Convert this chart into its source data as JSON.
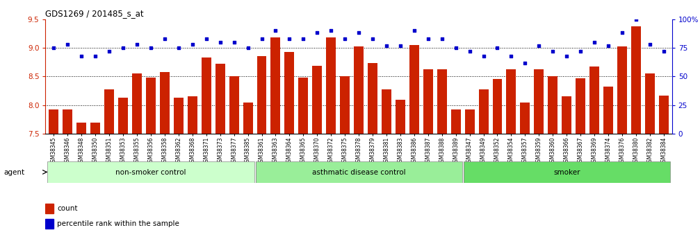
{
  "title": "GDS1269 / 201485_s_at",
  "categories": [
    "GSM38345",
    "GSM38346",
    "GSM38348",
    "GSM38350",
    "GSM38351",
    "GSM38353",
    "GSM38355",
    "GSM38356",
    "GSM38358",
    "GSM38362",
    "GSM38368",
    "GSM38371",
    "GSM38373",
    "GSM38377",
    "GSM38385",
    "GSM38361",
    "GSM38363",
    "GSM38364",
    "GSM38365",
    "GSM38370",
    "GSM38372",
    "GSM38375",
    "GSM38378",
    "GSM38379",
    "GSM38381",
    "GSM38383",
    "GSM38386",
    "GSM38387",
    "GSM38388",
    "GSM38389",
    "GSM38347",
    "GSM38349",
    "GSM38352",
    "GSM38354",
    "GSM38357",
    "GSM38359",
    "GSM38360",
    "GSM38366",
    "GSM38367",
    "GSM38369",
    "GSM38374",
    "GSM38376",
    "GSM38380",
    "GSM38382",
    "GSM38384"
  ],
  "bar_values": [
    7.93,
    7.93,
    7.7,
    7.7,
    8.28,
    8.13,
    8.55,
    8.48,
    8.58,
    8.13,
    8.16,
    8.83,
    8.72,
    8.5,
    8.04,
    8.85,
    9.18,
    8.93,
    8.48,
    8.68,
    9.18,
    8.5,
    9.02,
    8.74,
    8.28,
    8.1,
    9.05,
    8.62,
    8.63,
    7.92,
    7.92,
    8.28,
    8.46,
    8.63,
    8.04,
    8.63,
    8.5,
    8.15,
    8.47,
    8.67,
    8.32,
    9.02,
    9.38,
    8.55,
    8.17
  ],
  "percentile_values": [
    75,
    78,
    68,
    68,
    72,
    75,
    78,
    75,
    83,
    75,
    78,
    83,
    80,
    80,
    75,
    83,
    90,
    83,
    83,
    88,
    90,
    83,
    88,
    83,
    77,
    77,
    90,
    83,
    83,
    75,
    72,
    68,
    75,
    68,
    62,
    77,
    72,
    68,
    72,
    80,
    77,
    88,
    100,
    78,
    72
  ],
  "groups": [
    {
      "label": "non-smoker control",
      "start": 0,
      "end": 14,
      "color": "#ccffcc"
    },
    {
      "label": "asthmatic disease control",
      "start": 15,
      "end": 29,
      "color": "#99ee99"
    },
    {
      "label": "smoker",
      "start": 30,
      "end": 44,
      "color": "#66dd66"
    }
  ],
  "ylim_left": [
    7.5,
    9.5
  ],
  "ylim_right": [
    0,
    100
  ],
  "yticks_left": [
    7.5,
    8.0,
    8.5,
    9.0,
    9.5
  ],
  "yticks_right": [
    0,
    25,
    50,
    75,
    100
  ],
  "bar_color": "#cc2200",
  "dot_color": "#0000cc",
  "background_color": "#ffffff",
  "agent_label": "agent",
  "legend_count": "count",
  "legend_percentile": "percentile rank within the sample"
}
